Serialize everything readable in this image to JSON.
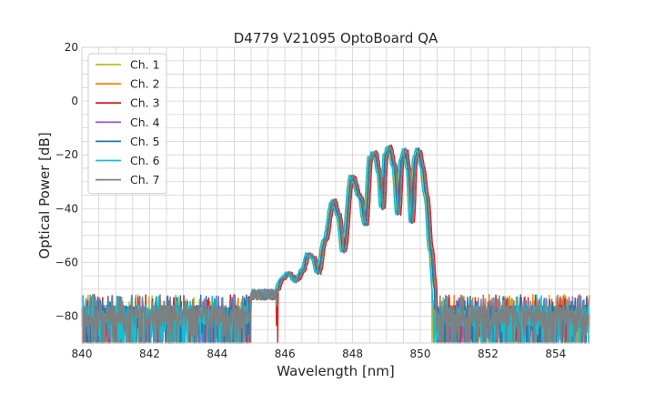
{
  "chart_data": {
    "type": "line",
    "title": "D4779 V21095 OptoBoard QA",
    "xlabel": "Wavelength [nm]",
    "ylabel": "Optical Power [dB]",
    "xlim": [
      840,
      855
    ],
    "ylim": [
      -90,
      20
    ],
    "x_major_ticks": [
      840,
      842,
      844,
      846,
      848,
      850,
      852,
      854
    ],
    "x_tick_labels": [
      "840",
      "842",
      "844",
      "846",
      "848",
      "850",
      "852",
      "854"
    ],
    "y_major_ticks": [
      20,
      0,
      -20,
      -40,
      -60,
      -80
    ],
    "y_tick_labels": [
      "20",
      "0",
      "−20",
      "−40",
      "−60",
      "−80"
    ],
    "x_grid_step": 0.5,
    "y_grid_step": 5,
    "grid": true,
    "legend_position": "top-left",
    "noise_floor": -80,
    "series": [
      {
        "name": "Ch. 1",
        "color": "#bcbd22",
        "shift": 0.0,
        "noise_start": 840.0,
        "floor_end": 850.35
      },
      {
        "name": "Ch. 2",
        "color": "#ff7f0e",
        "shift": 0.04,
        "noise_start": 844.5,
        "floor_end": 850.45
      },
      {
        "name": "Ch. 3",
        "color": "#d62728",
        "shift": 0.1,
        "noise_start": 840.0,
        "floor_end": 850.55
      },
      {
        "name": "Ch. 4",
        "color": "#9467bd",
        "shift": 0.03,
        "noise_start": 840.0,
        "floor_end": 850.45
      },
      {
        "name": "Ch. 5",
        "color": "#1f77b4",
        "shift": 0.02,
        "noise_start": 840.0,
        "floor_end": 850.45
      },
      {
        "name": "Ch. 6",
        "color": "#17becf",
        "shift": -0.04,
        "noise_start": 840.0,
        "floor_end": 850.4
      },
      {
        "name": "Ch. 7",
        "color": "#7f7f7f",
        "shift": 0.06,
        "noise_start": 840.0,
        "floor_end": 850.5
      }
    ],
    "envelope": [
      [
        845.7,
        -71
      ],
      [
        845.9,
        -66
      ],
      [
        846.1,
        -64
      ],
      [
        846.3,
        -67
      ],
      [
        846.5,
        -63
      ],
      [
        846.65,
        -57
      ],
      [
        846.8,
        -58
      ],
      [
        846.95,
        -64
      ],
      [
        847.15,
        -52
      ],
      [
        847.4,
        -37
      ],
      [
        847.55,
        -42
      ],
      [
        847.7,
        -56
      ],
      [
        847.95,
        -28
      ],
      [
        848.2,
        -36
      ],
      [
        848.35,
        -46
      ],
      [
        848.5,
        -21
      ],
      [
        848.62,
        -19
      ],
      [
        848.75,
        -26
      ],
      [
        848.85,
        -40
      ],
      [
        848.95,
        -20
      ],
      [
        849.05,
        -17
      ],
      [
        849.2,
        -24
      ],
      [
        849.32,
        -42
      ],
      [
        849.42,
        -22
      ],
      [
        849.52,
        -18
      ],
      [
        849.62,
        -25
      ],
      [
        849.72,
        -45
      ],
      [
        849.82,
        -21
      ],
      [
        849.92,
        -18
      ],
      [
        850.02,
        -24
      ],
      [
        850.15,
        -35
      ],
      [
        850.28,
        -55
      ],
      [
        850.4,
        -70
      ]
    ]
  }
}
